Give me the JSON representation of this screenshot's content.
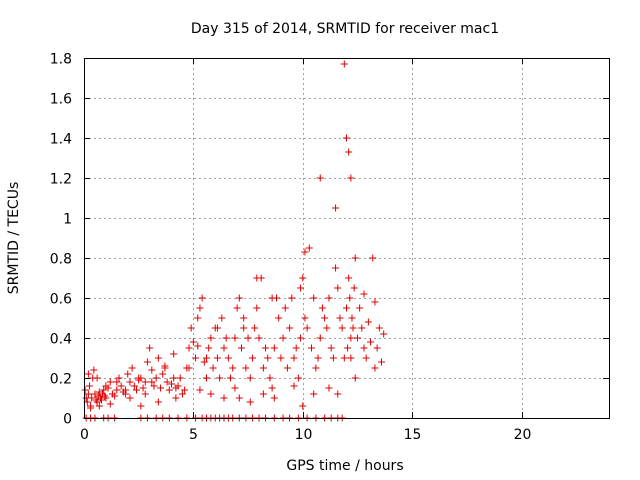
{
  "chart_data": {
    "type": "scatter",
    "title": "Day 315 of 2014, SRMTID for receiver mac1",
    "xlabel": "GPS time / hours",
    "ylabel": "SRMTID / TECUs",
    "xlim": [
      0,
      24
    ],
    "ylim": [
      0,
      1.8
    ],
    "xticks": [
      "0",
      "5",
      "10",
      "15",
      "20"
    ],
    "yticks": [
      "0",
      "0.2",
      "0.4",
      "0.6",
      "0.8",
      "1",
      "1.2",
      "1.4",
      "1.6",
      "1.8"
    ],
    "grid": true,
    "marker": "+",
    "color": "#e00000",
    "series": [
      {
        "name": "mac1",
        "x": [
          0.05,
          0.1,
          0.15,
          0.2,
          0.25,
          0.3,
          0.35,
          0.4,
          0.45,
          0.5,
          0.55,
          0.6,
          0.65,
          0.7,
          0.75,
          0.8,
          0.85,
          0.9,
          0.95,
          1.0,
          1.1,
          1.2,
          1.3,
          1.4,
          1.5,
          1.6,
          1.7,
          1.8,
          1.9,
          2.0,
          2.1,
          2.2,
          2.3,
          2.4,
          2.5,
          2.6,
          2.7,
          2.8,
          2.9,
          3.0,
          3.1,
          3.2,
          3.3,
          3.4,
          3.5,
          3.6,
          3.7,
          3.8,
          3.9,
          4.0,
          4.1,
          4.2,
          4.3,
          4.4,
          4.5,
          4.6,
          4.7,
          4.8,
          4.9,
          5.0,
          5.1,
          5.2,
          5.3,
          5.4,
          5.5,
          5.6,
          5.7,
          5.8,
          5.9,
          6.0,
          6.1,
          6.2,
          6.3,
          6.4,
          6.5,
          6.6,
          6.7,
          6.8,
          6.9,
          7.0,
          7.1,
          7.2,
          7.3,
          7.4,
          7.5,
          7.6,
          7.7,
          7.8,
          7.9,
          8.0,
          8.1,
          8.2,
          8.3,
          8.4,
          8.5,
          8.6,
          8.7,
          8.8,
          8.9,
          9.0,
          9.1,
          9.2,
          9.3,
          9.4,
          9.5,
          9.6,
          9.7,
          9.8,
          9.9,
          10.0,
          10.1,
          10.2,
          10.3,
          10.4,
          10.5,
          10.6,
          10.7,
          10.8,
          10.9,
          11.0,
          11.1,
          11.2,
          11.3,
          11.4,
          11.5,
          11.6,
          11.7,
          11.8,
          11.9,
          12.0,
          12.05,
          12.1,
          12.15,
          12.2,
          12.25,
          12.3,
          12.35,
          12.4,
          12.5,
          12.6,
          12.7,
          12.8,
          12.9,
          13.0,
          13.1,
          13.2,
          13.3,
          13.4,
          13.5,
          13.6,
          13.7,
          0.3,
          0.7,
          1.2,
          2.1,
          2.6,
          3.4,
          4.2,
          5.3,
          5.8,
          6.4,
          7.1,
          7.6,
          8.2,
          8.7,
          9.6,
          10.0,
          10.5,
          11.2,
          11.6,
          12.2,
          12.4,
          12.8,
          13.3,
          12.0,
          12.1,
          11.9,
          12.2,
          11.5,
          10.8,
          10.1,
          9.9,
          8.6,
          7.9,
          7.3,
          6.9,
          6.1,
          5.6,
          5.2,
          4.8,
          4.1,
          3.7,
          3.1,
          2.8,
          2.5,
          1.9,
          1.5,
          1.0,
          0.6,
          0.2
        ],
        "y": [
          0.14,
          0.1,
          0.08,
          0.12,
          0.16,
          0.06,
          0.1,
          0.2,
          0.24,
          0.12,
          0.09,
          0.08,
          0.11,
          0.13,
          0.1,
          0.09,
          0.12,
          0.14,
          0.11,
          0.1,
          0.15,
          0.18,
          0.12,
          0.11,
          0.14,
          0.2,
          0.16,
          0.13,
          0.12,
          0.22,
          0.18,
          0.25,
          0.16,
          0.14,
          0.19,
          0.2,
          0.15,
          0.12,
          0.28,
          0.35,
          0.18,
          0.16,
          0.2,
          0.3,
          0.15,
          0.22,
          0.25,
          0.18,
          0.14,
          0.17,
          0.32,
          0.15,
          0.16,
          0.2,
          0.12,
          0.14,
          0.25,
          0.35,
          0.45,
          0.38,
          0.3,
          0.5,
          0.55,
          0.6,
          0.28,
          0.2,
          0.35,
          0.4,
          0.25,
          0.45,
          0.3,
          0.2,
          0.5,
          0.35,
          0.4,
          0.3,
          0.2,
          0.25,
          0.15,
          0.55,
          0.6,
          0.35,
          0.45,
          0.25,
          0.4,
          0.2,
          0.3,
          0.45,
          0.55,
          0.4,
          0.7,
          0.25,
          0.35,
          0.3,
          0.2,
          0.15,
          0.35,
          0.6,
          0.5,
          0.3,
          0.4,
          0.55,
          0.25,
          0.45,
          0.6,
          0.3,
          0.35,
          0.2,
          0.4,
          0.7,
          0.5,
          0.45,
          0.85,
          0.35,
          0.6,
          0.25,
          0.3,
          0.4,
          0.55,
          0.5,
          0.45,
          0.6,
          0.35,
          0.3,
          0.75,
          0.65,
          0.5,
          0.45,
          0.3,
          0.55,
          0.35,
          0.7,
          0.6,
          0.4,
          0.5,
          0.45,
          0.65,
          0.8,
          0.4,
          0.55,
          0.45,
          0.62,
          0.3,
          0.48,
          0.38,
          0.8,
          0.58,
          0.35,
          0.45,
          0.28,
          0.42,
          0.05,
          0.06,
          0.07,
          0.1,
          0.06,
          0.08,
          0.1,
          0.14,
          0.12,
          0.1,
          0.1,
          0.08,
          0.12,
          0.1,
          0.16,
          0.06,
          0.12,
          0.15,
          0.12,
          0.3,
          0.2,
          0.35,
          0.25,
          1.4,
          1.33,
          1.77,
          1.2,
          1.05,
          1.2,
          0.83,
          0.65,
          0.6,
          0.7,
          0.5,
          0.4,
          0.45,
          0.3,
          0.36,
          0.25,
          0.2,
          0.26,
          0.24,
          0.18,
          0.2,
          0.14,
          0.18,
          0.16,
          0.2,
          0.22
        ],
        "x_zero_band": [
          0.1,
          0.3,
          0.5,
          0.9,
          1.1,
          1.4,
          2.6,
          2.9,
          3.3,
          3.6,
          3.9,
          4.3,
          4.7,
          5.1,
          5.4,
          5.6,
          5.8,
          6.0,
          6.2,
          6.4,
          6.6,
          6.8,
          7.1,
          7.4,
          7.7,
          8.0,
          8.3,
          8.7,
          9.1,
          9.4,
          9.8,
          10.2,
          10.6,
          11.0,
          11.3,
          11.6,
          11.8
        ]
      }
    ]
  }
}
